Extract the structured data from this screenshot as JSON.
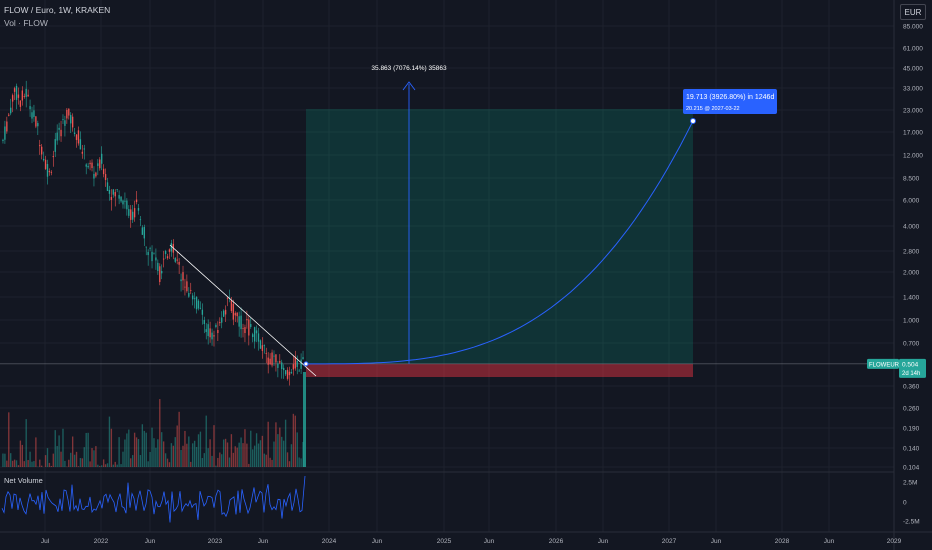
{
  "header": {
    "symbol_line": "FLOW / Euro, 1W, KRAKEN",
    "volume_label": "Vol · FLOW",
    "currency": "EUR"
  },
  "chart_data": {
    "type": "candlestick",
    "symbol": "FLOW / Euro",
    "interval": "1W",
    "exchange": "KRAKEN",
    "scale": "log",
    "y_ticks": [
      "85.000",
      "61.000",
      "45.000",
      "33.000",
      "23.000",
      "17.000",
      "12.000",
      "8.500",
      "6.000",
      "4.000",
      "2.800",
      "2.000",
      "1.400",
      "1.000",
      "0.700",
      "0.360",
      "0.260",
      "0.190",
      "0.140",
      "0.104"
    ],
    "x_ticks": [
      "Jul",
      "2022",
      "Jun",
      "2023",
      "Jun",
      "2024",
      "Jun",
      "2025",
      "Jun",
      "2026",
      "Jun",
      "2027",
      "Jun",
      "2028",
      "Jun",
      "2029"
    ],
    "price_range_eur": [
      0.25,
      38
    ],
    "approx_closes": [
      15.0,
      22.0,
      33.0,
      28.0,
      31.0,
      24.0,
      18.0,
      12.0,
      9.0,
      14.0,
      18.0,
      23.0,
      20.0,
      16.0,
      12.0,
      10.0,
      9.0,
      11.0,
      8.0,
      6.5,
      7.0,
      6.0,
      5.0,
      5.5,
      4.0,
      3.0,
      2.6,
      2.0,
      2.5,
      3.1,
      2.3,
      1.9,
      1.6,
      1.4,
      1.1,
      0.9,
      0.75,
      0.85,
      1.1,
      1.3,
      1.05,
      0.95,
      0.9,
      0.85,
      0.72,
      0.6,
      0.55,
      0.52,
      0.48,
      0.45,
      0.5,
      0.504
    ],
    "current_price": {
      "label": "FLOWEUR",
      "value": "0.504",
      "countdown": "2d 14h"
    },
    "projection": {
      "target_label": "35.863 (7076.14%) 35863",
      "curve_label": "19.713 (3926.80%) in 1246d",
      "curve_sub": "20.215 @ 2027-03-22",
      "entry": 0.504,
      "target": 35.863,
      "stop": 0.43
    },
    "net_volume": {
      "label": "Net Volume",
      "ticks": [
        "2.5M",
        "0",
        "-2.5M"
      ]
    }
  }
}
